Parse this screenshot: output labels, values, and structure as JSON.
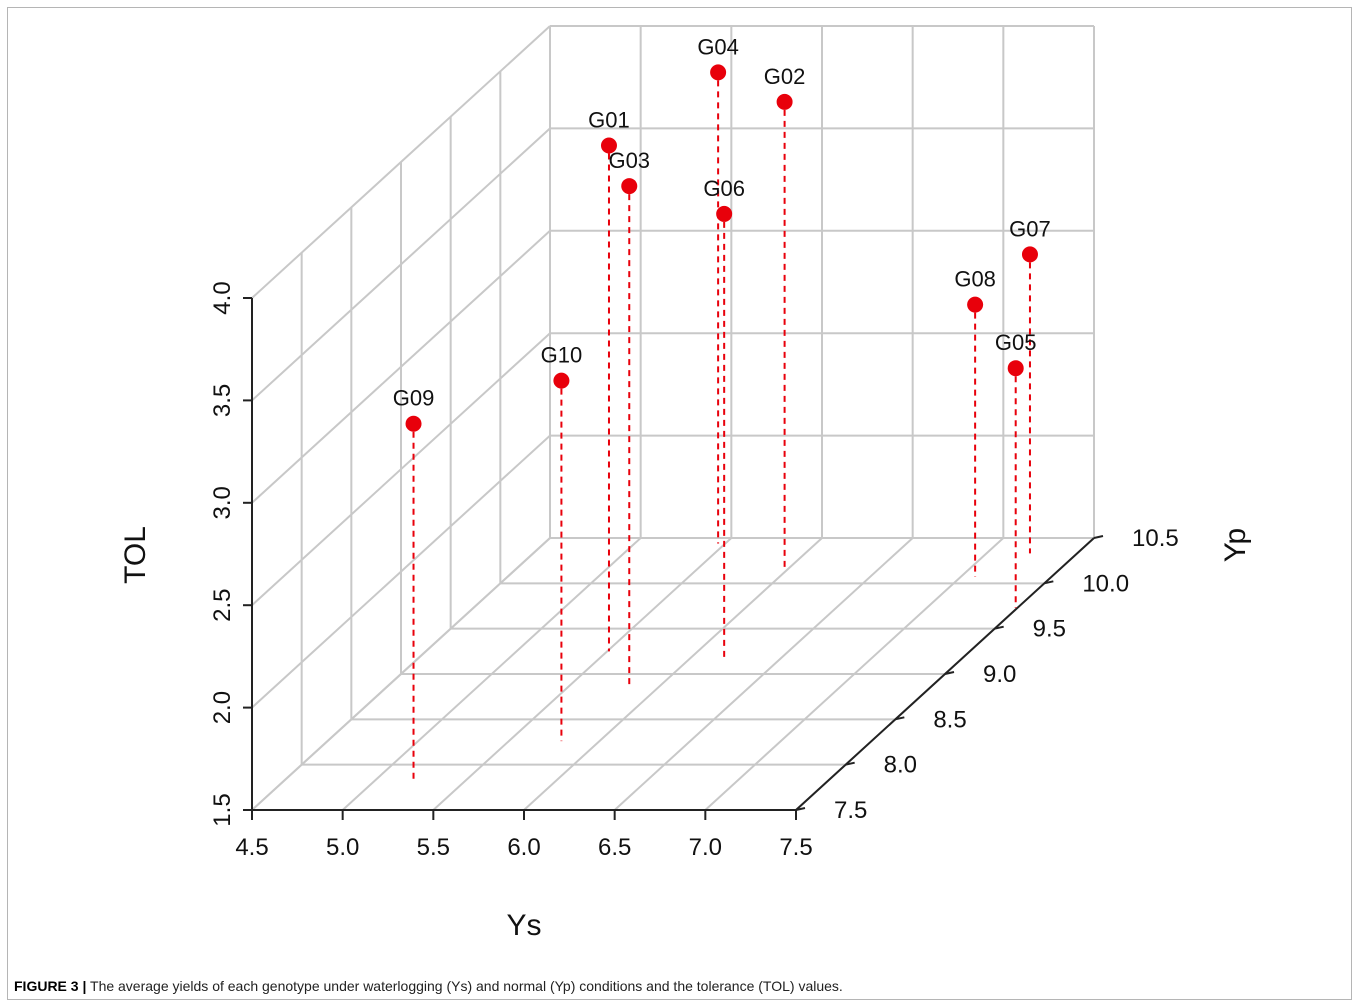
{
  "chart_data": {
    "type": "scatter",
    "subtype": "3d-scatter-with-drop-lines",
    "xlabel": "Ys",
    "ylabel": "Yp",
    "zlabel": "TOL",
    "xlim": [
      4.5,
      7.5
    ],
    "ylim": [
      7.5,
      10.5
    ],
    "zlim": [
      1.5,
      4.0
    ],
    "x_ticks": [
      "4.5",
      "5.0",
      "5.5",
      "6.0",
      "6.5",
      "7.0",
      "7.5"
    ],
    "y_ticks": [
      "7.5",
      "8.0",
      "8.5",
      "9.0",
      "9.5",
      "10.0",
      "10.5"
    ],
    "z_ticks": [
      "1.5",
      "2.0",
      "2.5",
      "3.0",
      "3.5",
      "4.0"
    ],
    "grid": true,
    "point_color": "#e8000b",
    "grid_color": "#c8c8c8",
    "points": [
      {
        "label": "G01",
        "x": 5.51,
        "y": 9.25,
        "z": 3.97
      },
      {
        "label": "G02",
        "x": 5.98,
        "y": 10.16,
        "z": 3.78
      },
      {
        "label": "G03",
        "x": 5.83,
        "y": 8.87,
        "z": 3.94
      },
      {
        "label": "G04",
        "x": 5.46,
        "y": 10.44,
        "z": 3.8
      },
      {
        "label": "G05",
        "x": 7.49,
        "y": 9.73,
        "z": 2.67
      },
      {
        "label": "G06",
        "x": 6.2,
        "y": 9.15,
        "z": 3.68
      },
      {
        "label": "G07",
        "x": 7.24,
        "y": 10.33,
        "z": 2.96
      },
      {
        "label": "G08",
        "x": 7.08,
        "y": 10.07,
        "z": 2.83
      },
      {
        "label": "G09",
        "x": 5.21,
        "y": 7.83,
        "z": 3.24
      },
      {
        "label": "G10",
        "x": 5.79,
        "y": 8.26,
        "z": 3.26
      }
    ]
  },
  "caption": {
    "label": "FIGURE 3 |",
    "text": " The average yields of each genotype under waterlogging (Ys) and normal (Yp) conditions and the tolerance (TOL) values."
  }
}
